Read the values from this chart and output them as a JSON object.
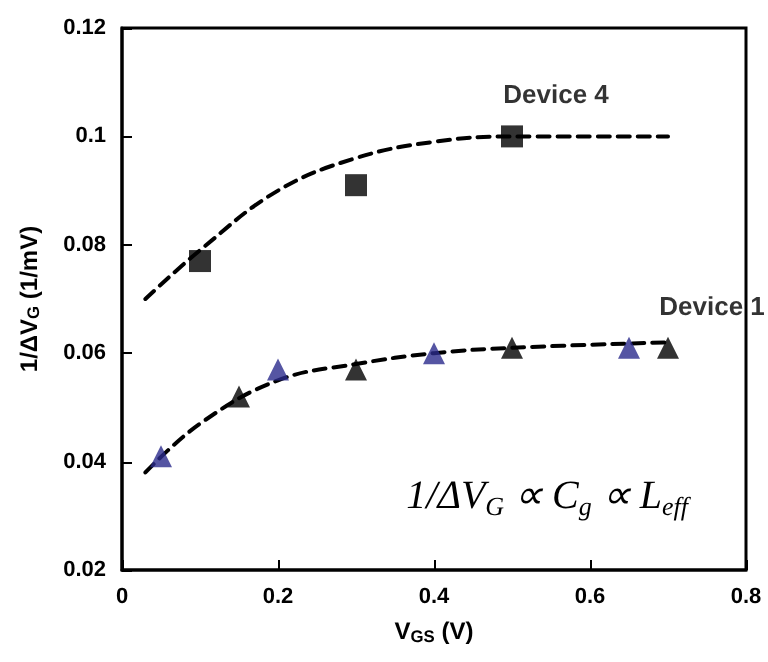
{
  "chart_data": {
    "type": "scatter",
    "xlabel": "V$_{GS}$ (V)",
    "ylabel": "1/ΔV$_{G}$ (1/mV)",
    "xlim": [
      0,
      0.8
    ],
    "xticks": [
      0,
      0.2,
      0.4,
      0.6,
      0.8
    ],
    "ylim": [
      0.02,
      0.12
    ],
    "yticks": [
      0.02,
      0.04,
      0.06,
      0.08,
      0.1,
      0.12
    ],
    "grid": false,
    "annotations": [
      "1/ΔV$_{G}$ ∝ C$_{g}$ ∝ L$_{eff}$"
    ],
    "series": [
      {
        "type": "line",
        "color": "#000000",
        "line_style": "dashed",
        "marker": "none",
        "x": [
          0.03,
          0.1,
          0.2,
          0.3,
          0.4,
          0.5,
          0.7
        ],
        "values": [
          0.07,
          0.079,
          0.09,
          0.096,
          0.099,
          0.1,
          0.1
        ]
      },
      {
        "type": "line",
        "color": "#000000",
        "line_style": "dashed",
        "marker": "none",
        "x": [
          0.03,
          0.1,
          0.2,
          0.3,
          0.4,
          0.5,
          0.7
        ],
        "values": [
          0.038,
          0.047,
          0.055,
          0.058,
          0.06,
          0.061,
          0.062
        ]
      },
      {
        "name": "Device 4",
        "color": "#000000",
        "marker": "square",
        "x": [
          0.1,
          0.3,
          0.5
        ],
        "values": [
          0.077,
          0.091,
          0.1
        ]
      },
      {
        "name": "Device 1",
        "color": "#000000",
        "marker": "triangle",
        "x": [
          0.15,
          0.3,
          0.5,
          0.7
        ],
        "values": [
          0.052,
          0.057,
          0.061,
          0.061
        ]
      },
      {
        "color": "#2a2a8c",
        "marker": "triangle",
        "x": [
          0.05,
          0.2,
          0.4,
          0.65
        ],
        "values": [
          0.041,
          0.057,
          0.06,
          0.061
        ]
      }
    ]
  }
}
